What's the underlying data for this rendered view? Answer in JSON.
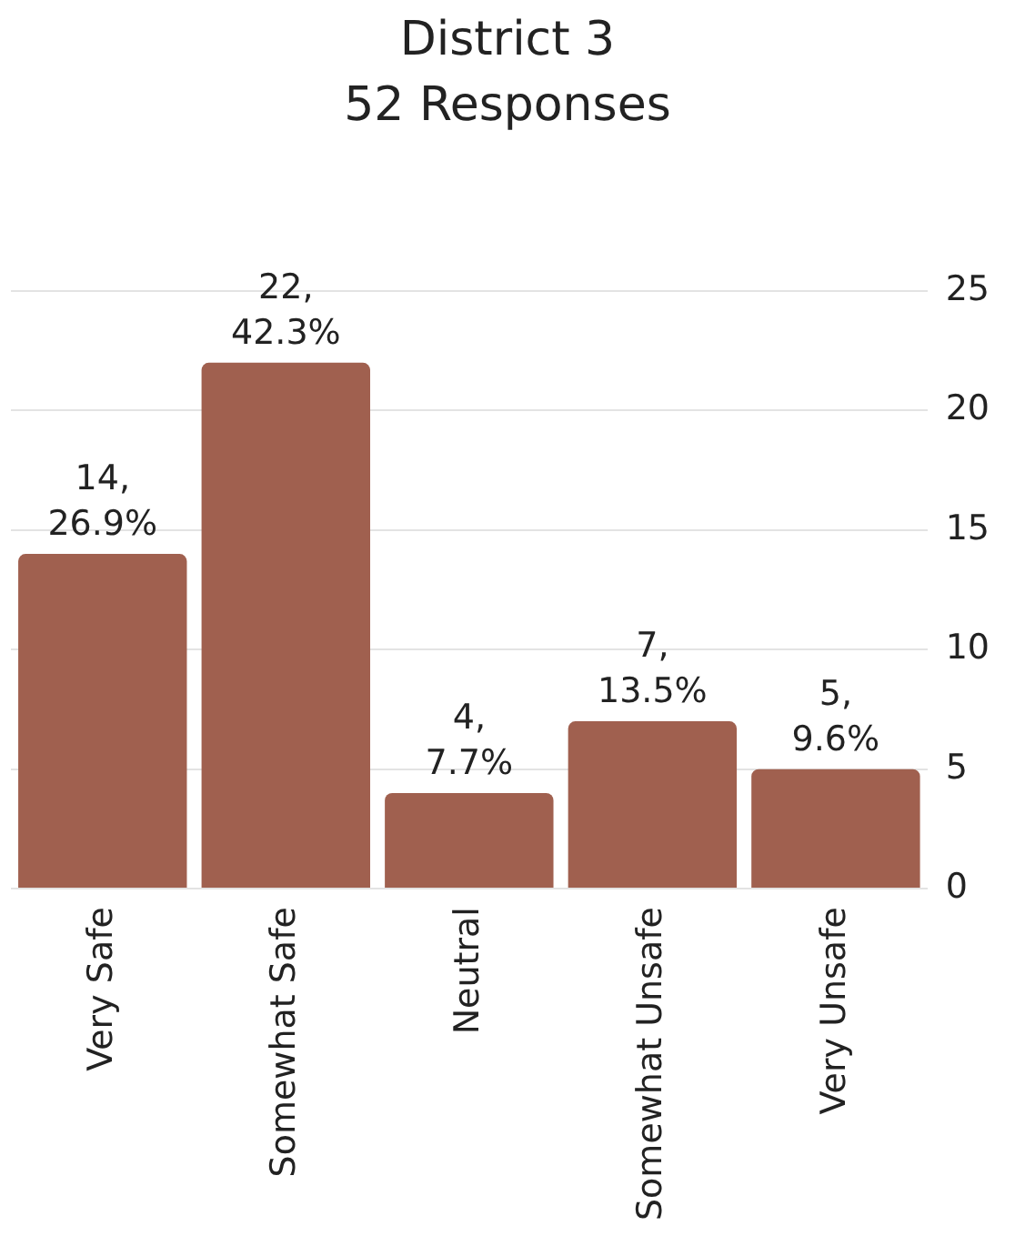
{
  "chart_data": {
    "type": "bar",
    "title": "District 3",
    "subtitle": "52 Responses",
    "categories": [
      "Very Safe",
      "Somewhat Safe",
      "Neutral",
      "Somewhat Unsafe",
      "Very Unsafe"
    ],
    "values": [
      14,
      22,
      4,
      7,
      5
    ],
    "value_labels": [
      "14, 26.9%",
      "22, 42.3%",
      "4, 7.7%",
      "7, 13.5%",
      "5, 9.6%"
    ],
    "color": "#a0604f",
    "ylim": [
      0,
      25
    ],
    "yticks": [
      0,
      5,
      10,
      15,
      20,
      25
    ],
    "grid": "y",
    "legend": false
  }
}
